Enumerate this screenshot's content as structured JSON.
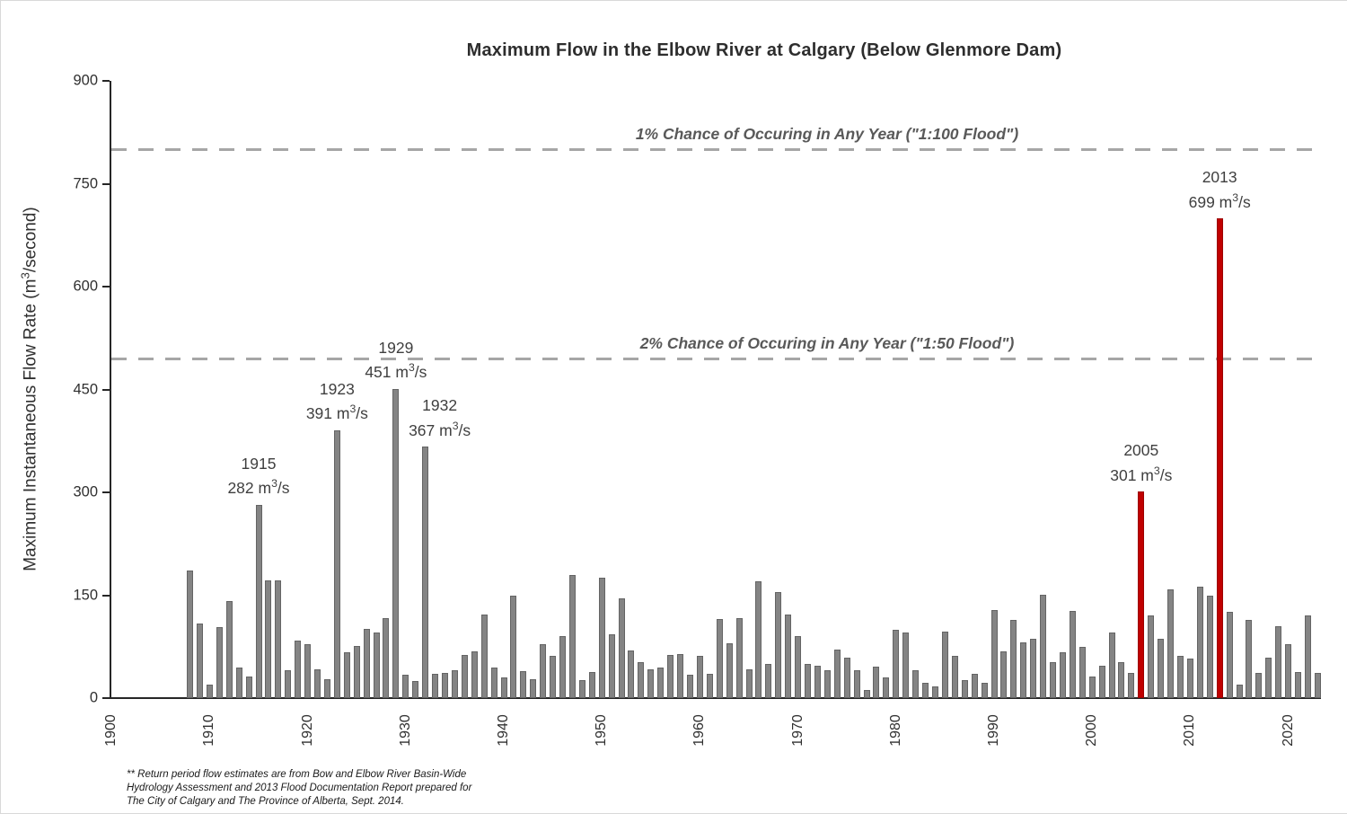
{
  "title": "Maximum Flow in the Elbow River at Calgary (Below Glenmore Dam)",
  "y_axis": {
    "label": "Maximum Instantaneous Flow Rate (m³/second)",
    "ticks": [
      0,
      150,
      300,
      450,
      600,
      750,
      900
    ],
    "max": 900
  },
  "x_axis": {
    "ticks": [
      1900,
      1910,
      1920,
      1930,
      1940,
      1950,
      1960,
      1970,
      1980,
      1990,
      2000,
      2010,
      2020
    ]
  },
  "footnote_lines": [
    "**  Return period flow estimates are from Bow and Elbow River Basin-Wide",
    "Hydrology Assessment and 2013 Flood Documentation Report prepared for",
    "The City of Calgary and The Province of Alberta, Sept. 2014."
  ],
  "colors": {
    "bar": "#848484",
    "highlight_bar": "#c00000",
    "dashed_line": "#a6a6a6",
    "annotation_text": "#3f3f3f",
    "reference_label_text": "#595959"
  },
  "chart_data": {
    "type": "bar",
    "title": "Maximum Flow in the Elbow River at Calgary (Below Glenmore Dam)",
    "xlabel": "",
    "ylabel": "Maximum Instantaneous Flow Rate (m³/second)",
    "ylim": [
      0,
      900
    ],
    "grid": false,
    "years": [
      1908,
      1909,
      1910,
      1911,
      1912,
      1913,
      1914,
      1915,
      1916,
      1917,
      1918,
      1919,
      1920,
      1921,
      1922,
      1923,
      1924,
      1925,
      1926,
      1927,
      1928,
      1929,
      1930,
      1931,
      1932,
      1933,
      1934,
      1935,
      1936,
      1937,
      1938,
      1939,
      1940,
      1941,
      1942,
      1943,
      1944,
      1945,
      1946,
      1947,
      1948,
      1949,
      1950,
      1951,
      1952,
      1953,
      1954,
      1955,
      1956,
      1957,
      1958,
      1959,
      1960,
      1961,
      1962,
      1963,
      1964,
      1965,
      1966,
      1967,
      1968,
      1969,
      1970,
      1971,
      1972,
      1973,
      1974,
      1975,
      1976,
      1977,
      1978,
      1979,
      1980,
      1981,
      1982,
      1983,
      1984,
      1985,
      1986,
      1987,
      1988,
      1989,
      1990,
      1991,
      1992,
      1993,
      1994,
      1995,
      1996,
      1997,
      1998,
      1999,
      2000,
      2001,
      2002,
      2003,
      2004,
      2005,
      2006,
      2007,
      2008,
      2009,
      2010,
      2011,
      2012,
      2013,
      2014,
      2015,
      2016,
      2017,
      2018,
      2019,
      2020,
      2021,
      2022,
      2023
    ],
    "values": [
      186,
      109,
      20,
      104,
      142,
      44,
      32,
      282,
      171,
      172,
      40,
      84,
      78,
      42,
      28,
      391,
      67,
      76,
      101,
      95,
      116,
      451,
      34,
      25,
      367,
      36,
      37,
      40,
      63,
      68,
      122,
      45,
      30,
      150,
      39,
      28,
      78,
      62,
      91,
      180,
      26,
      38,
      176,
      93,
      145,
      69,
      52,
      42,
      44,
      63,
      64,
      34,
      61,
      35,
      115,
      80,
      116,
      42,
      170,
      50,
      155,
      122,
      90,
      50,
      47,
      40,
      71,
      59,
      40,
      12,
      46,
      30,
      100,
      95,
      41,
      22,
      17,
      97,
      62,
      26,
      36,
      22,
      129,
      68,
      114,
      81,
      87,
      151,
      53,
      67,
      127,
      75,
      31,
      47,
      95,
      52,
      37,
      301,
      121,
      87,
      159,
      61,
      57,
      163,
      149,
      699,
      126,
      20,
      114,
      37,
      59,
      105,
      79,
      38,
      120,
      37
    ],
    "highlight_years": [
      2005,
      2013
    ],
    "annotations": [
      {
        "year": 1915,
        "label": "1915",
        "value_text": "282 m³/s",
        "dx": 0
      },
      {
        "year": 1923,
        "label": "1923",
        "value_text": "391 m³/s",
        "dx": 0
      },
      {
        "year": 1929,
        "label": "1929",
        "value_text": "451 m³/s",
        "dx": 0
      },
      {
        "year": 1932,
        "label": "1932",
        "value_text": "367 m³/s",
        "dx": 16
      },
      {
        "year": 2005,
        "label": "2005",
        "value_text": "301 m³/s",
        "dx": 0
      },
      {
        "year": 2013,
        "label": "2013",
        "value_text": "699 m³/s",
        "dx": 0
      }
    ],
    "reference_lines": [
      {
        "label": "1% Chance of Occuring in Any Year (\"1:100 Flood\")",
        "value": 800
      },
      {
        "label": "2% Chance of Occuring in Any Year (\"1:50 Flood\")",
        "value": 495
      }
    ],
    "legend": null
  }
}
